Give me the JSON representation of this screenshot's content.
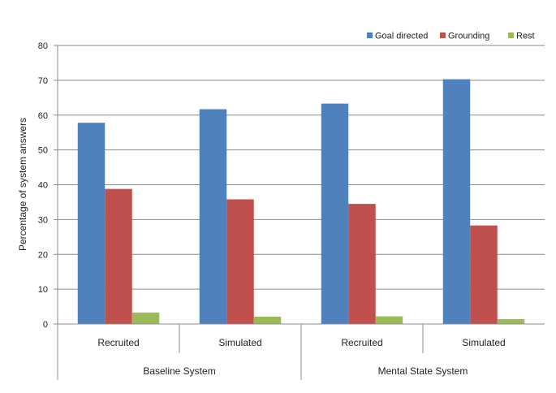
{
  "chart_data": {
    "type": "bar",
    "title": "",
    "xlabel": "",
    "ylabel": "Percentage of system answers",
    "ylim": [
      0,
      80
    ],
    "yticks": [
      0,
      10,
      20,
      30,
      40,
      50,
      60,
      70,
      80
    ],
    "grid": true,
    "legend_position": "top-right",
    "categories": [
      "Recruited",
      "Simulated",
      "Recruited",
      "Simulated"
    ],
    "groups": [
      {
        "label": "Baseline System",
        "categories": [
          "Recruited",
          "Simulated"
        ]
      },
      {
        "label": "Mental State System",
        "categories": [
          "Recruited",
          "Simulated"
        ]
      }
    ],
    "series": [
      {
        "name": "Goal directed",
        "color": "#4f81bd",
        "values": [
          57.8,
          61.7,
          63.3,
          70.3
        ]
      },
      {
        "name": "Grounding",
        "color": "#c0504d",
        "values": [
          38.8,
          35.8,
          34.5,
          28.3
        ]
      },
      {
        "name": "Rest",
        "color": "#9bbb59",
        "values": [
          3.3,
          2.1,
          2.2,
          1.4
        ]
      }
    ]
  }
}
